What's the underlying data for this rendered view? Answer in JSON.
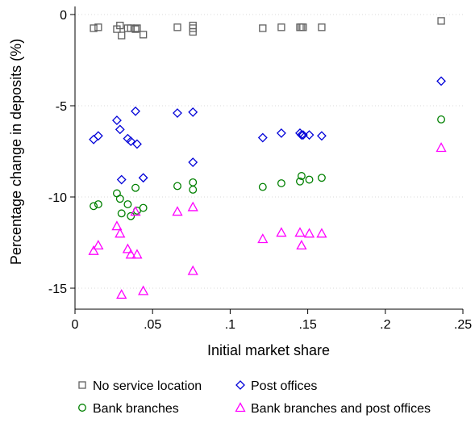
{
  "chart_data": {
    "type": "scatter",
    "title": "",
    "xlabel": "Initial market share",
    "ylabel": "Percentage change in deposits (%)",
    "xlim": [
      0,
      0.25
    ],
    "ylim": [
      -15.5,
      0
    ],
    "x_ticks": [
      {
        "value": 0,
        "label": "0"
      },
      {
        "value": 0.05,
        "label": ".05"
      },
      {
        "value": 0.1,
        "label": ".1"
      },
      {
        "value": 0.15,
        "label": ".15"
      },
      {
        "value": 0.2,
        "label": ".2"
      },
      {
        "value": 0.25,
        "label": ".25"
      }
    ],
    "y_ticks": [
      {
        "value": 0,
        "label": "0"
      },
      {
        "value": -5,
        "label": "-5"
      },
      {
        "value": -10,
        "label": "-10"
      },
      {
        "value": -15,
        "label": "-15"
      }
    ],
    "grid": true,
    "legend_position": "bottom",
    "series": [
      {
        "name": "No service location",
        "marker": "square",
        "color": "#606060",
        "points": [
          [
            0.012,
            -0.75
          ],
          [
            0.015,
            -0.7
          ],
          [
            0.027,
            -0.8
          ],
          [
            0.029,
            -0.6
          ],
          [
            0.03,
            -1.15
          ],
          [
            0.034,
            -0.75
          ],
          [
            0.036,
            -0.75
          ],
          [
            0.039,
            -0.8
          ],
          [
            0.04,
            -0.75
          ],
          [
            0.044,
            -1.1
          ],
          [
            0.066,
            -0.7
          ],
          [
            0.076,
            -0.6
          ],
          [
            0.076,
            -0.75
          ],
          [
            0.076,
            -0.95
          ],
          [
            0.121,
            -0.75
          ],
          [
            0.133,
            -0.7
          ],
          [
            0.145,
            -0.7
          ],
          [
            0.146,
            -0.7
          ],
          [
            0.147,
            -0.7
          ],
          [
            0.159,
            -0.7
          ],
          [
            0.236,
            -0.35
          ]
        ]
      },
      {
        "name": "Post offices",
        "marker": "diamond",
        "color": "#0000d8",
        "points": [
          [
            0.012,
            -6.85
          ],
          [
            0.015,
            -6.65
          ],
          [
            0.027,
            -5.8
          ],
          [
            0.029,
            -6.3
          ],
          [
            0.03,
            -9.05
          ],
          [
            0.034,
            -6.8
          ],
          [
            0.036,
            -6.95
          ],
          [
            0.039,
            -5.3
          ],
          [
            0.04,
            -7.1
          ],
          [
            0.044,
            -8.95
          ],
          [
            0.066,
            -5.4
          ],
          [
            0.076,
            -5.35
          ],
          [
            0.076,
            -8.1
          ],
          [
            0.121,
            -6.75
          ],
          [
            0.133,
            -6.5
          ],
          [
            0.145,
            -6.5
          ],
          [
            0.146,
            -6.6
          ],
          [
            0.147,
            -6.6
          ],
          [
            0.151,
            -6.6
          ],
          [
            0.159,
            -6.65
          ],
          [
            0.236,
            -3.65
          ]
        ]
      },
      {
        "name": "Bank branches",
        "marker": "circle",
        "color": "#008000",
        "points": [
          [
            0.012,
            -10.5
          ],
          [
            0.015,
            -10.4
          ],
          [
            0.027,
            -9.8
          ],
          [
            0.029,
            -10.1
          ],
          [
            0.03,
            -10.9
          ],
          [
            0.034,
            -10.4
          ],
          [
            0.036,
            -11.05
          ],
          [
            0.039,
            -9.5
          ],
          [
            0.04,
            -10.75
          ],
          [
            0.044,
            -10.6
          ],
          [
            0.066,
            -9.4
          ],
          [
            0.076,
            -9.2
          ],
          [
            0.076,
            -9.6
          ],
          [
            0.121,
            -9.45
          ],
          [
            0.133,
            -9.25
          ],
          [
            0.145,
            -9.15
          ],
          [
            0.146,
            -8.85
          ],
          [
            0.151,
            -9.05
          ],
          [
            0.159,
            -8.95
          ],
          [
            0.236,
            -5.75
          ]
        ]
      },
      {
        "name": "Bank branches and post offices",
        "marker": "triangle",
        "color": "#ff00ff",
        "points": [
          [
            0.012,
            -12.95
          ],
          [
            0.015,
            -12.65
          ],
          [
            0.027,
            -11.6
          ],
          [
            0.029,
            -12.0
          ],
          [
            0.03,
            -15.35
          ],
          [
            0.034,
            -12.85
          ],
          [
            0.036,
            -13.15
          ],
          [
            0.039,
            -10.8
          ],
          [
            0.04,
            -13.15
          ],
          [
            0.044,
            -15.15
          ],
          [
            0.066,
            -10.8
          ],
          [
            0.076,
            -10.55
          ],
          [
            0.076,
            -14.05
          ],
          [
            0.121,
            -12.3
          ],
          [
            0.133,
            -11.95
          ],
          [
            0.145,
            -11.95
          ],
          [
            0.146,
            -12.65
          ],
          [
            0.151,
            -12.0
          ],
          [
            0.159,
            -12.0
          ],
          [
            0.236,
            -7.3
          ]
        ]
      }
    ]
  }
}
